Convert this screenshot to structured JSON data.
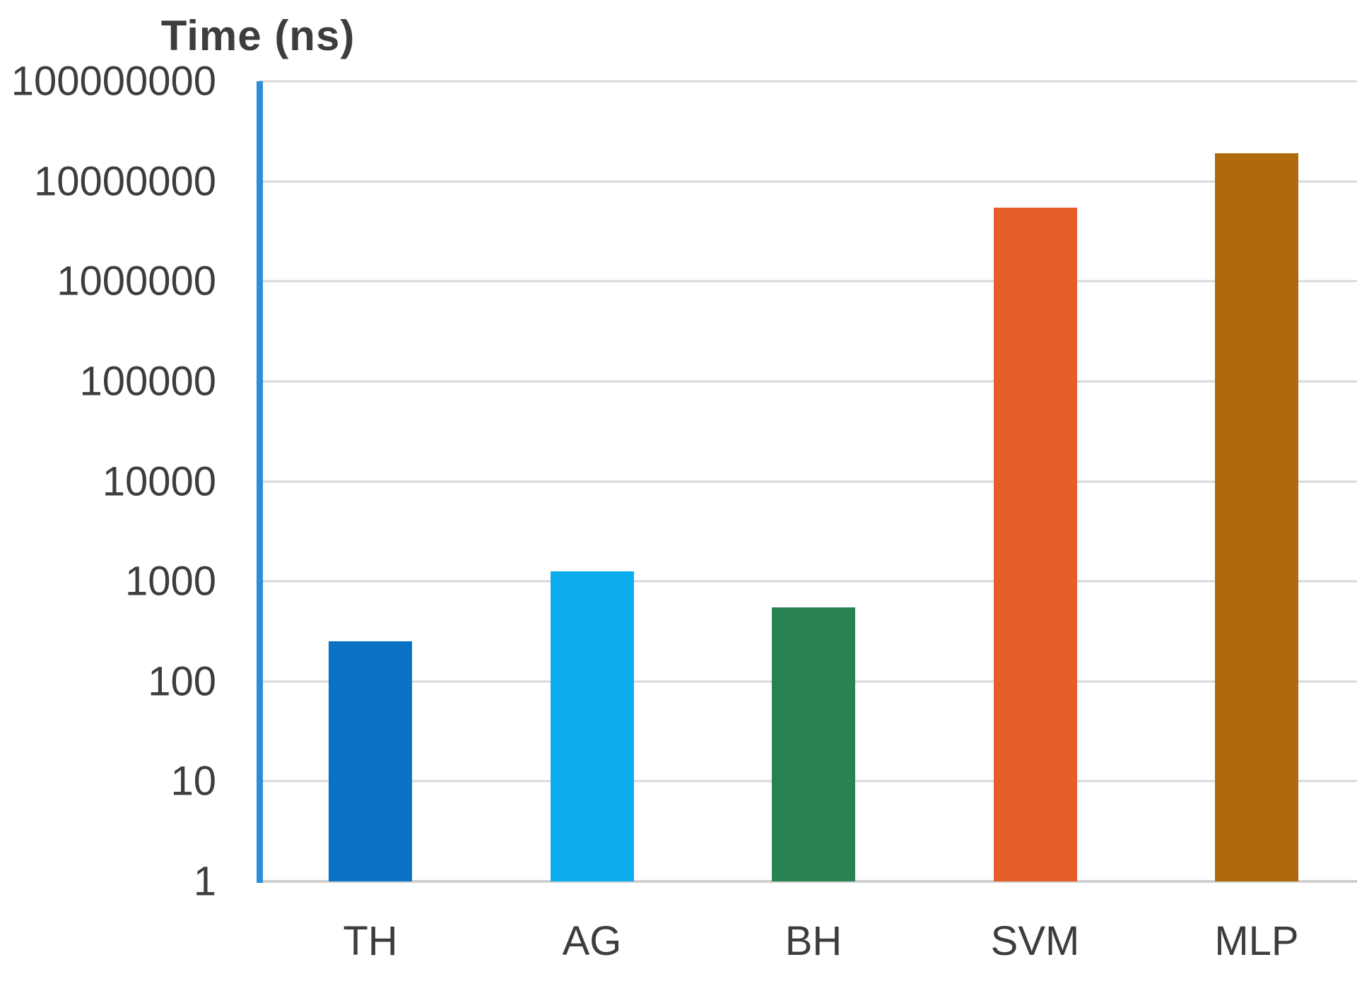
{
  "chart_data": {
    "type": "bar",
    "axis_title": "Time (ns)",
    "categories": [
      "TH",
      "AG",
      "BH",
      "SVM",
      "MLP"
    ],
    "values": [
      250,
      1250,
      550,
      5500000,
      19000000
    ],
    "bar_colors": [
      "#0a72c4",
      "#0baded",
      "#298350",
      "#e55e27",
      "#b06a0e"
    ],
    "ytick_labels": [
      "100000000",
      "10000000",
      "1000000",
      "100000",
      "10000",
      "1000",
      "100",
      "10",
      "1"
    ],
    "yscale": "log10",
    "ylim": [
      1,
      100000000
    ],
    "xlabel": "",
    "ylabel": "Time (ns)",
    "grid": "horizontal gridlines on",
    "legend": "none",
    "colors": {
      "y_axis_line": "#2e8fd8",
      "gridline": "#d9d9d9",
      "baseline": "#cfcfcf",
      "text": "#3d3d3d",
      "background": "#ffffff"
    }
  }
}
